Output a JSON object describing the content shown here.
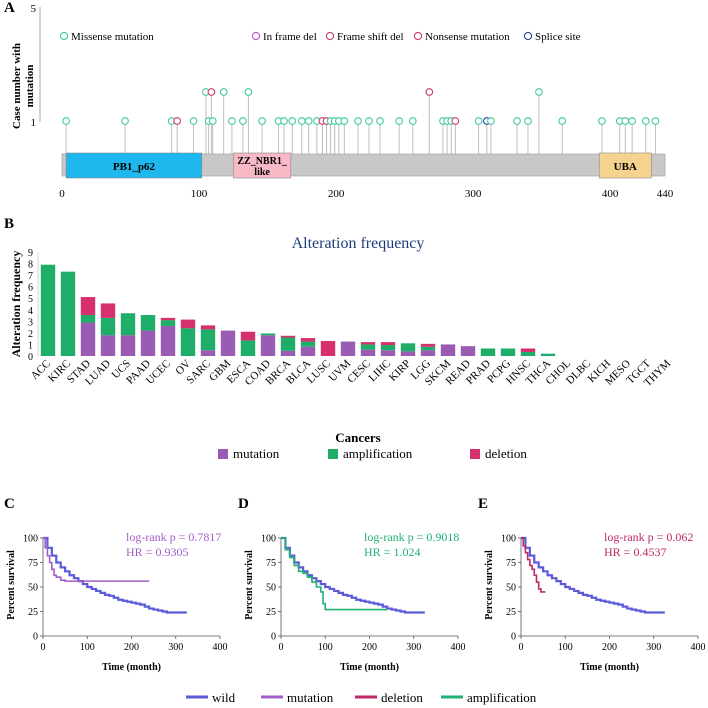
{
  "panels": {
    "a": "A",
    "b": "B",
    "c": "C",
    "d": "D",
    "e": "E"
  },
  "colors": {
    "missense": "#3fc9a4",
    "inframe": "#c050c8",
    "frameshift": "#c83c6c",
    "nonsense": "#c83c6c",
    "splice": "#3040a0",
    "mutation": "#9a5bb3",
    "amplification": "#1fae69",
    "deletion": "#d6306e",
    "wild": "#5b5bd9",
    "km_mutation": "#a45cc8",
    "km_deletion": "#c0286a",
    "km_amplification": "#22b073",
    "domain_pb1": "#1fb8ee",
    "domain_zz": "#f7b9c6",
    "domain_uba": "#f5d28e",
    "backbone": "#c8c8c8"
  },
  "lollipop": {
    "y_label_line1": "Case number with",
    "y_label_line2": "mutation",
    "y_ticks": [
      "5",
      "1"
    ],
    "protein_length": 440,
    "x_ticks": [
      0,
      100,
      200,
      300,
      400,
      440
    ],
    "legend": [
      {
        "label": "Missense mutation",
        "key": "missense"
      },
      {
        "label": "In frame del",
        "key": "inframe"
      },
      {
        "label": "Frame shift del",
        "key": "frameshift"
      },
      {
        "label": "Nonsense mutation",
        "key": "nonsense"
      },
      {
        "label": "Splice site",
        "key": "splice"
      }
    ],
    "domains": [
      {
        "name_line1": "PB1_p62",
        "name_line2": "",
        "start": 3,
        "end": 102,
        "key": "domain_pb1"
      },
      {
        "name_line1": "ZZ_NBR1_",
        "name_line2": "like",
        "start": 125,
        "end": 167,
        "key": "domain_zz"
      },
      {
        "name_line1": "UBA",
        "name_line2": "",
        "start": 392,
        "end": 430,
        "key": "domain_uba"
      }
    ],
    "mutations": [
      {
        "pos": 3,
        "count": 1,
        "type": "missense"
      },
      {
        "pos": 46,
        "count": 1,
        "type": "missense"
      },
      {
        "pos": 80,
        "count": 1,
        "type": "missense"
      },
      {
        "pos": 84,
        "count": 1,
        "type": "frameshift"
      },
      {
        "pos": 96,
        "count": 1,
        "type": "missense"
      },
      {
        "pos": 105,
        "count": 2,
        "type": "missense"
      },
      {
        "pos": 107,
        "count": 1,
        "type": "missense"
      },
      {
        "pos": 109,
        "count": 2,
        "type": "nonsense"
      },
      {
        "pos": 110,
        "count": 1,
        "type": "missense"
      },
      {
        "pos": 118,
        "count": 2,
        "type": "missense"
      },
      {
        "pos": 124,
        "count": 1,
        "type": "missense"
      },
      {
        "pos": 132,
        "count": 1,
        "type": "missense"
      },
      {
        "pos": 136,
        "count": 2,
        "type": "missense"
      },
      {
        "pos": 146,
        "count": 1,
        "type": "missense"
      },
      {
        "pos": 158,
        "count": 1,
        "type": "missense"
      },
      {
        "pos": 162,
        "count": 1,
        "type": "missense"
      },
      {
        "pos": 168,
        "count": 1,
        "type": "missense"
      },
      {
        "pos": 175,
        "count": 1,
        "type": "missense"
      },
      {
        "pos": 180,
        "count": 1,
        "type": "missense"
      },
      {
        "pos": 186,
        "count": 1,
        "type": "missense"
      },
      {
        "pos": 190,
        "count": 1,
        "type": "frameshift"
      },
      {
        "pos": 193,
        "count": 1,
        "type": "frameshift"
      },
      {
        "pos": 196,
        "count": 1,
        "type": "missense"
      },
      {
        "pos": 199,
        "count": 1,
        "type": "missense"
      },
      {
        "pos": 202,
        "count": 1,
        "type": "missense"
      },
      {
        "pos": 206,
        "count": 1,
        "type": "missense"
      },
      {
        "pos": 216,
        "count": 1,
        "type": "missense"
      },
      {
        "pos": 224,
        "count": 1,
        "type": "missense"
      },
      {
        "pos": 232,
        "count": 1,
        "type": "missense"
      },
      {
        "pos": 246,
        "count": 1,
        "type": "missense"
      },
      {
        "pos": 256,
        "count": 1,
        "type": "missense"
      },
      {
        "pos": 268,
        "count": 2,
        "type": "frameshift"
      },
      {
        "pos": 278,
        "count": 1,
        "type": "missense"
      },
      {
        "pos": 281,
        "count": 1,
        "type": "missense"
      },
      {
        "pos": 284,
        "count": 1,
        "type": "missense"
      },
      {
        "pos": 287,
        "count": 1,
        "type": "frameshift"
      },
      {
        "pos": 304,
        "count": 1,
        "type": "missense"
      },
      {
        "pos": 310,
        "count": 1,
        "type": "splice"
      },
      {
        "pos": 313,
        "count": 1,
        "type": "missense"
      },
      {
        "pos": 332,
        "count": 1,
        "type": "missense"
      },
      {
        "pos": 340,
        "count": 1,
        "type": "missense"
      },
      {
        "pos": 348,
        "count": 2,
        "type": "missense"
      },
      {
        "pos": 365,
        "count": 1,
        "type": "missense"
      },
      {
        "pos": 394,
        "count": 1,
        "type": "missense"
      },
      {
        "pos": 407,
        "count": 1,
        "type": "missense"
      },
      {
        "pos": 411,
        "count": 1,
        "type": "missense"
      },
      {
        "pos": 416,
        "count": 1,
        "type": "missense"
      },
      {
        "pos": 426,
        "count": 1,
        "type": "missense"
      },
      {
        "pos": 433,
        "count": 1,
        "type": "missense"
      }
    ]
  },
  "chart_data": [
    {
      "type": "bar",
      "title": "Alteration frequency",
      "xlabel": "Cancers",
      "ylabel": "Alteration frequency",
      "ylim": [
        0,
        9
      ],
      "y_ticks": [
        0,
        1,
        2,
        3,
        4,
        5,
        6,
        7,
        8,
        9
      ],
      "categories": [
        "ACC",
        "KIRC",
        "STAD",
        "LUAD",
        "UCS",
        "PAAD",
        "UCEC",
        "OV",
        "SARC",
        "GBM",
        "ESCA",
        "COAD",
        "BRCA",
        "BLCA",
        "LUSC",
        "UVM",
        "CESC",
        "LIHC",
        "KIRP",
        "LGG",
        "SKCM",
        "READ",
        "PRAD",
        "PCPG",
        "HNSC",
        "THCA",
        "CHOL",
        "DLBC",
        "KICH",
        "MESO",
        "TGCT",
        "THYM"
      ],
      "series": [
        {
          "name": "mutation",
          "values": [
            0,
            0,
            2.9,
            1.8,
            1.8,
            2.2,
            2.6,
            0,
            0.5,
            2.2,
            0,
            1.8,
            0.45,
            0.8,
            0,
            1.25,
            0.55,
            0.5,
            0.4,
            0.5,
            1.0,
            0.85,
            0,
            0,
            0,
            0,
            0,
            0,
            0,
            0,
            0,
            0
          ]
        },
        {
          "name": "amplification",
          "values": [
            7.9,
            7.3,
            0.65,
            1.5,
            1.9,
            1.35,
            0.5,
            2.4,
            1.8,
            0,
            1.35,
            0.15,
            1.15,
            0.45,
            0,
            0,
            0.45,
            0.45,
            0.7,
            0.3,
            0,
            0,
            0.65,
            0.65,
            0.35,
            0.2,
            0,
            0,
            0,
            0,
            0,
            0
          ]
        },
        {
          "name": "deletion",
          "values": [
            0,
            0,
            1.55,
            1.25,
            0,
            0,
            0.2,
            0.75,
            0.35,
            0,
            0.75,
            0,
            0.15,
            0.3,
            1.3,
            0,
            0.2,
            0.25,
            0,
            0.25,
            0,
            0,
            0,
            0,
            0.3,
            0,
            0,
            0,
            0,
            0,
            0,
            0
          ]
        }
      ],
      "legend": [
        "mutation",
        "amplification",
        "deletion"
      ]
    },
    {
      "type": "line",
      "panel": "C",
      "ylabel": "Percent survival",
      "xlabel": "Time (month)",
      "xlim": [
        0,
        400
      ],
      "ylim": [
        0,
        100
      ],
      "x_ticks": [
        0,
        100,
        200,
        300,
        400
      ],
      "y_ticks": [
        0,
        25,
        50,
        75,
        100
      ],
      "stat_line1": "log-rank p = 0.7817",
      "stat_line2": "HR = 0.9305",
      "stat_key": "km_mutation",
      "series": [
        {
          "name": "wild",
          "key": "wild",
          "x": [
            0,
            10,
            20,
            30,
            40,
            50,
            60,
            70,
            80,
            90,
            100,
            110,
            120,
            130,
            140,
            150,
            160,
            170,
            180,
            190,
            200,
            210,
            220,
            230,
            240,
            250,
            260,
            270,
            280,
            300,
            320,
            325
          ],
          "y": [
            100,
            90,
            82,
            75,
            70,
            66,
            62,
            59,
            56,
            53,
            50,
            48,
            46,
            44,
            42,
            41,
            39,
            37,
            36,
            35,
            34,
            33,
            32,
            30,
            28,
            27,
            26,
            25,
            24,
            24,
            24,
            24
          ]
        },
        {
          "name": "mutation",
          "key": "km_mutation",
          "x": [
            0,
            5,
            10,
            15,
            20,
            25,
            30,
            40,
            50,
            60,
            100,
            150,
            200,
            240
          ],
          "y": [
            100,
            90,
            82,
            75,
            68,
            62,
            60,
            57,
            56,
            56,
            56,
            56,
            56,
            56
          ]
        }
      ]
    },
    {
      "type": "line",
      "panel": "D",
      "ylabel": "Percent survival",
      "xlabel": "Time (month)",
      "xlim": [
        0,
        400
      ],
      "ylim": [
        0,
        100
      ],
      "x_ticks": [
        0,
        100,
        200,
        300,
        400
      ],
      "y_ticks": [
        0,
        25,
        50,
        75,
        100
      ],
      "stat_line1": "log-rank p = 0.9018",
      "stat_line2": "HR = 1.024",
      "stat_key": "km_amplification",
      "series": [
        {
          "name": "wild",
          "key": "wild",
          "x": [
            0,
            10,
            20,
            30,
            40,
            50,
            60,
            70,
            80,
            90,
            100,
            110,
            120,
            130,
            140,
            150,
            160,
            170,
            180,
            190,
            200,
            210,
            220,
            230,
            240,
            250,
            260,
            270,
            280,
            300,
            320,
            325
          ],
          "y": [
            100,
            90,
            82,
            75,
            70,
            66,
            62,
            59,
            56,
            53,
            50,
            48,
            46,
            44,
            42,
            41,
            39,
            37,
            36,
            35,
            34,
            33,
            32,
            30,
            28,
            27,
            26,
            25,
            24,
            24,
            24,
            24
          ]
        },
        {
          "name": "amplification",
          "key": "km_amplification",
          "x": [
            0,
            10,
            20,
            30,
            40,
            50,
            60,
            70,
            80,
            90,
            95,
            100,
            150,
            200,
            240
          ],
          "y": [
            100,
            88,
            80,
            72,
            66,
            64,
            60,
            55,
            50,
            45,
            33,
            27,
            27,
            27,
            27
          ]
        }
      ]
    },
    {
      "type": "line",
      "panel": "E",
      "ylabel": "Percent survival",
      "xlabel": "Time (month)",
      "xlim": [
        0,
        400
      ],
      "ylim": [
        0,
        100
      ],
      "x_ticks": [
        0,
        100,
        200,
        300,
        400
      ],
      "y_ticks": [
        0,
        25,
        50,
        75,
        100
      ],
      "stat_line1": "log-rank p = 0.062",
      "stat_line2": "HR = 0.4537",
      "stat_key": "km_deletion",
      "series": [
        {
          "name": "wild",
          "key": "wild",
          "x": [
            0,
            10,
            20,
            30,
            40,
            50,
            60,
            70,
            80,
            90,
            100,
            110,
            120,
            130,
            140,
            150,
            160,
            170,
            180,
            190,
            200,
            210,
            220,
            230,
            240,
            250,
            260,
            270,
            280,
            300,
            320,
            325
          ],
          "y": [
            100,
            90,
            82,
            75,
            70,
            66,
            62,
            59,
            56,
            53,
            50,
            48,
            46,
            44,
            42,
            41,
            39,
            37,
            36,
            35,
            34,
            33,
            32,
            30,
            28,
            27,
            26,
            25,
            24,
            24,
            24,
            24
          ]
        },
        {
          "name": "deletion",
          "key": "km_deletion",
          "x": [
            0,
            5,
            10,
            15,
            20,
            25,
            30,
            35,
            40,
            45,
            50,
            55
          ],
          "y": [
            100,
            92,
            85,
            78,
            72,
            68,
            62,
            55,
            48,
            45,
            45,
            45
          ]
        }
      ]
    }
  ],
  "km_legend": [
    {
      "label": "wild",
      "key": "wild"
    },
    {
      "label": "mutation",
      "key": "km_mutation"
    },
    {
      "label": "deletion",
      "key": "km_deletion"
    },
    {
      "label": "amplification",
      "key": "km_amplification"
    }
  ]
}
